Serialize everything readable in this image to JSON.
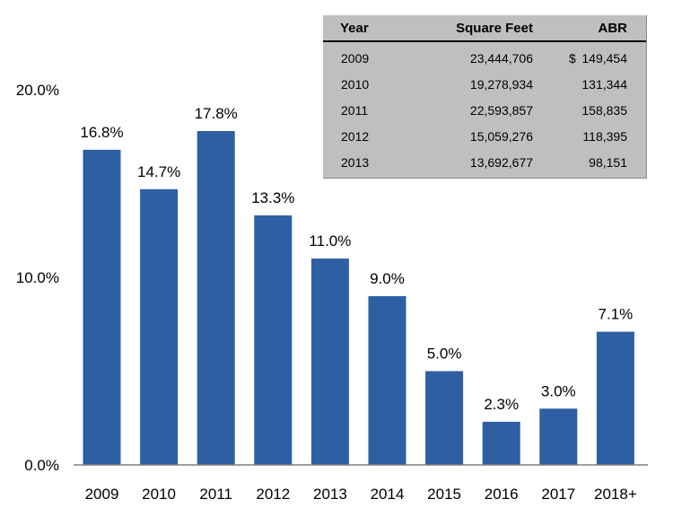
{
  "chart_data": {
    "type": "bar",
    "title": "",
    "xlabel": "",
    "ylabel": "",
    "categories": [
      "2009",
      "2010",
      "2011",
      "2012",
      "2013",
      "2014",
      "2015",
      "2016",
      "2017",
      "2018+"
    ],
    "values": [
      16.8,
      14.7,
      17.8,
      13.3,
      11.0,
      9.0,
      5.0,
      2.3,
      3.0,
      7.1
    ],
    "value_labels": [
      "16.8%",
      "14.7%",
      "17.8%",
      "13.3%",
      "11.0%",
      "9.0%",
      "5.0%",
      "2.3%",
      "3.0%",
      "7.1%"
    ],
    "ylim": [
      0,
      20
    ],
    "yticks": [
      0,
      10,
      20
    ],
    "ytick_labels": [
      "0.0%",
      "10.0%",
      "20.0%"
    ],
    "grid": false,
    "bar_color": "#2e5fa3"
  },
  "table": {
    "headers": {
      "year": "Year",
      "sqft": "Square Feet",
      "abr": "ABR"
    },
    "rows": [
      {
        "year": "2009",
        "sqft": "23,444,706",
        "dollar": "$",
        "abr": "149,454"
      },
      {
        "year": "2010",
        "sqft": "19,278,934",
        "dollar": "",
        "abr": "131,344"
      },
      {
        "year": "2011",
        "sqft": "22,593,857",
        "dollar": "",
        "abr": "158,835"
      },
      {
        "year": "2012",
        "sqft": "15,059,276",
        "dollar": "",
        "abr": "118,395"
      },
      {
        "year": "2013",
        "sqft": "13,692,677",
        "dollar": "",
        "abr": "98,151"
      }
    ]
  }
}
